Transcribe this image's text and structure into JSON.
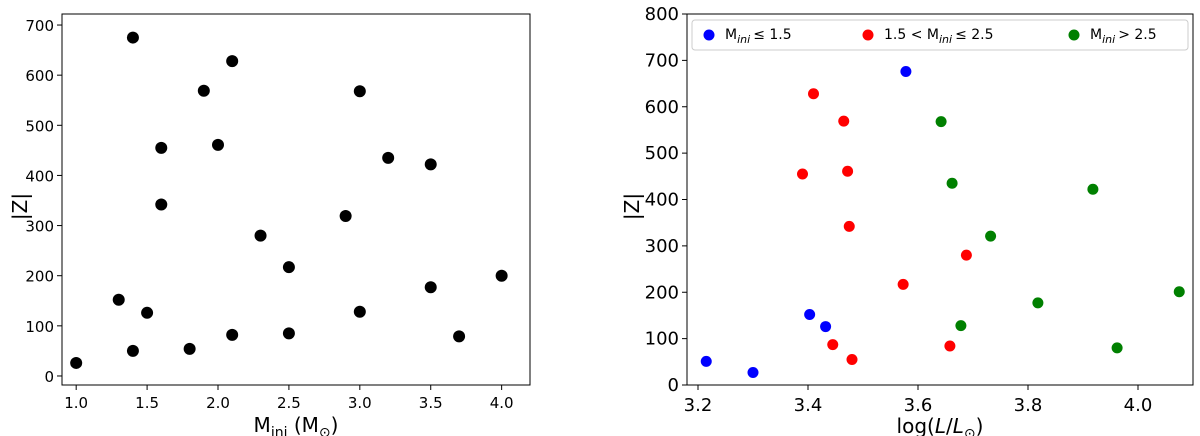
{
  "chart_data": [
    {
      "type": "scatter",
      "title": "",
      "xlabel": {
        "main": "M",
        "sub": "ini",
        "unit_open": " (M",
        "unit_sub": "⊙",
        "unit_close": ")"
      },
      "ylabel": "|Z|",
      "xlim": [
        0.9,
        4.2
      ],
      "ylim": [
        -18,
        722
      ],
      "xticks": [
        1.0,
        1.5,
        2.0,
        2.5,
        3.0,
        3.5,
        4.0
      ],
      "xtick_labels": [
        "1.0",
        "1.5",
        "2.0",
        "2.5",
        "3.0",
        "3.5",
        "4.0"
      ],
      "yticks": [
        0,
        100,
        200,
        300,
        400,
        500,
        600,
        700
      ],
      "ytick_labels": [
        "0",
        "100",
        "200",
        "300",
        "400",
        "500",
        "600",
        "700"
      ],
      "grid": false,
      "marker_color": "#000000",
      "points": [
        {
          "x": 1.0,
          "y": 26
        },
        {
          "x": 1.3,
          "y": 152
        },
        {
          "x": 1.4,
          "y": 675
        },
        {
          "x": 1.4,
          "y": 50
        },
        {
          "x": 1.5,
          "y": 126
        },
        {
          "x": 1.6,
          "y": 455
        },
        {
          "x": 1.6,
          "y": 342
        },
        {
          "x": 1.8,
          "y": 54
        },
        {
          "x": 1.9,
          "y": 569
        },
        {
          "x": 2.0,
          "y": 461
        },
        {
          "x": 2.1,
          "y": 628
        },
        {
          "x": 2.1,
          "y": 82
        },
        {
          "x": 2.3,
          "y": 280
        },
        {
          "x": 2.5,
          "y": 217
        },
        {
          "x": 2.5,
          "y": 85
        },
        {
          "x": 2.9,
          "y": 319
        },
        {
          "x": 3.0,
          "y": 568
        },
        {
          "x": 3.0,
          "y": 128
        },
        {
          "x": 3.2,
          "y": 435
        },
        {
          "x": 3.5,
          "y": 422
        },
        {
          "x": 3.5,
          "y": 177
        },
        {
          "x": 3.7,
          "y": 79
        },
        {
          "x": 4.0,
          "y": 200
        }
      ]
    },
    {
      "type": "scatter",
      "title": "",
      "xlabel": {
        "pre": "log(",
        "var": "L",
        "slash": "/",
        "var2": "L",
        "sub": "⊙",
        "post": ")"
      },
      "ylabel": "|Z|",
      "xlim": [
        3.18,
        4.1
      ],
      "ylim": [
        0,
        800
      ],
      "xticks": [
        3.2,
        3.4,
        3.6,
        3.8,
        4.0
      ],
      "xtick_labels": [
        "3.2",
        "3.4",
        "3.6",
        "3.8",
        "4.0"
      ],
      "yticks": [
        0,
        100,
        200,
        300,
        400,
        500,
        600,
        700,
        800
      ],
      "ytick_labels": [
        "0",
        "100",
        "200",
        "300",
        "400",
        "500",
        "600",
        "700",
        "800"
      ],
      "grid": false,
      "legend_placement": "top",
      "series": [
        {
          "name": {
            "pre": "M",
            "sub": "ini",
            "post": "≤  1.5"
          },
          "color": "#0000ff",
          "points": [
            {
              "x": 3.215,
              "y": 51
            },
            {
              "x": 3.3,
              "y": 27
            },
            {
              "x": 3.403,
              "y": 152
            },
            {
              "x": 3.432,
              "y": 126
            },
            {
              "x": 3.578,
              "y": 676
            }
          ]
        },
        {
          "name": {
            "pre": "1.5 < M",
            "sub": "ini",
            "post": "≤  2.5"
          },
          "color": "#ff0000",
          "points": [
            {
              "x": 3.41,
              "y": 628
            },
            {
              "x": 3.465,
              "y": 569
            },
            {
              "x": 3.39,
              "y": 455
            },
            {
              "x": 3.472,
              "y": 461
            },
            {
              "x": 3.475,
              "y": 342
            },
            {
              "x": 3.573,
              "y": 217
            },
            {
              "x": 3.688,
              "y": 280
            },
            {
              "x": 3.445,
              "y": 87
            },
            {
              "x": 3.48,
              "y": 55
            },
            {
              "x": 3.658,
              "y": 84
            }
          ]
        },
        {
          "name": {
            "pre": "M",
            "sub": "ini",
            "post": "> 2.5"
          },
          "color": "#008000",
          "points": [
            {
              "x": 3.642,
              "y": 568
            },
            {
              "x": 3.662,
              "y": 435
            },
            {
              "x": 3.918,
              "y": 422
            },
            {
              "x": 3.732,
              "y": 321
            },
            {
              "x": 3.818,
              "y": 177
            },
            {
              "x": 4.075,
              "y": 201
            },
            {
              "x": 3.678,
              "y": 128
            },
            {
              "x": 3.962,
              "y": 80
            }
          ]
        }
      ]
    }
  ]
}
